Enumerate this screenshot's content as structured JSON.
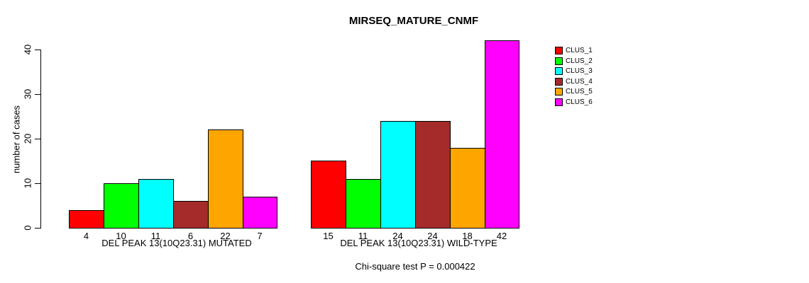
{
  "chart_data": {
    "type": "bar",
    "title": "MIRSEQ_MATURE_CNMF",
    "xlabel": "",
    "ylabel": "number of cases",
    "ylim": [
      0,
      42
    ],
    "yticks": [
      0,
      10,
      20,
      30,
      40
    ],
    "grid": false,
    "legend_position": "right",
    "bar_borders": "#000000",
    "categories": [
      "DEL PEAK 13(10Q23.31) MUTATED",
      "DEL PEAK 13(10Q23.31) WILD-TYPE"
    ],
    "series": [
      {
        "name": "CLUS_1",
        "color": "#FF0000",
        "values": [
          4,
          15
        ]
      },
      {
        "name": "CLUS_2",
        "color": "#00FF00",
        "values": [
          10,
          11
        ]
      },
      {
        "name": "CLUS_3",
        "color": "#00FFFF",
        "values": [
          11,
          24
        ]
      },
      {
        "name": "CLUS_4",
        "color": "#A52A2A",
        "values": [
          6,
          24
        ]
      },
      {
        "name": "CLUS_5",
        "color": "#FFA500",
        "values": [
          22,
          18
        ]
      },
      {
        "name": "CLUS_6",
        "color": "#FF00FF",
        "values": [
          7,
          42
        ]
      }
    ],
    "bar_value_labels": [
      [
        4,
        10,
        11,
        6,
        22,
        7
      ],
      [
        15,
        11,
        24,
        24,
        18,
        42
      ]
    ],
    "annotation": "Chi-square test P = 0.000422"
  }
}
